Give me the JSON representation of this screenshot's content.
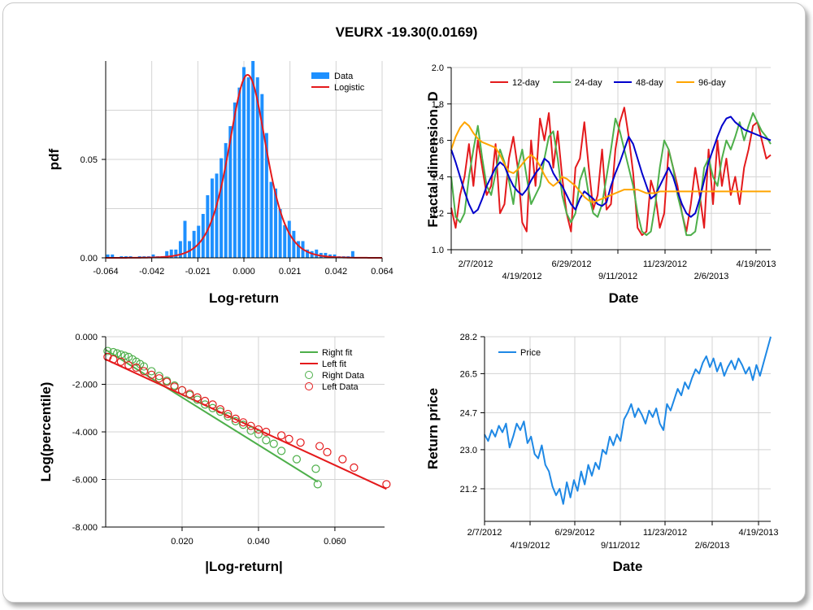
{
  "title": "VEURX -19.30(0.0169)",
  "colors": {
    "data_blue": "#1e90ff",
    "red": "#e41a1c",
    "green": "#4daf4a",
    "blue": "#0000cc",
    "orange": "#ffa500",
    "price": "#1e88e5",
    "grid": "#d3d3d3"
  },
  "chart_data": [
    {
      "type": "bar",
      "name": "histogram",
      "xlabel": "Log-return",
      "ylabel": "pdf",
      "xlim": [
        -0.064,
        0.064
      ],
      "xticks": [
        "-0.064",
        "-0.042",
        "-0.021",
        "0.000",
        "0.021",
        "0.042",
        "0.064"
      ],
      "ylim": [
        0,
        0.1
      ],
      "yticks": [
        "0.00",
        "0.05"
      ],
      "legend": [
        "Data",
        "Logistic"
      ],
      "bin_width": 0.0021,
      "bin_centers": [
        -0.063,
        -0.0609,
        -0.0588,
        -0.0567,
        -0.0546,
        -0.0525,
        -0.0504,
        -0.0483,
        -0.0462,
        -0.0441,
        -0.042,
        -0.0399,
        -0.0378,
        -0.0357,
        -0.0336,
        -0.0315,
        -0.0294,
        -0.0273,
        -0.0252,
        -0.0231,
        -0.021,
        -0.0189,
        -0.0168,
        -0.0147,
        -0.0126,
        -0.0105,
        -0.0084,
        -0.0063,
        -0.0042,
        -0.0021,
        0.0,
        0.0021,
        0.0042,
        0.0063,
        0.0084,
        0.0105,
        0.0126,
        0.0147,
        0.0168,
        0.0189,
        0.021,
        0.0231,
        0.0252,
        0.0273,
        0.0294,
        0.0315,
        0.0336,
        0.0357,
        0.0378,
        0.0399,
        0.042,
        0.0441,
        0.0462,
        0.0483,
        0.0504
      ],
      "values": [
        0.0017,
        0.0017,
        0,
        0.0008,
        0.0008,
        0.0008,
        0,
        0.0008,
        0.0008,
        0.0008,
        0.0017,
        0.0008,
        0.0008,
        0.0034,
        0.0042,
        0.0042,
        0.0085,
        0.0188,
        0.0085,
        0.0137,
        0.0163,
        0.0223,
        0.0318,
        0.0403,
        0.0428,
        0.0506,
        0.0583,
        0.0669,
        0.0789,
        0.0865,
        0.0969,
        0.0917,
        0.1,
        0.0917,
        0.0832,
        0.0634,
        0.0386,
        0.0352,
        0.0248,
        0.0166,
        0.0188,
        0.0137,
        0.0085,
        0.0085,
        0.0042,
        0.0034,
        0.0042,
        0.0025,
        0.0025,
        0.0017,
        0.0017,
        0.0008,
        0.0008,
        0.0008,
        0.0034
      ],
      "logistic": {
        "mu": 0.0017,
        "s": 0.0058
      }
    },
    {
      "type": "line",
      "name": "fractal",
      "xlabel": "Date",
      "ylabel": "Fractal dimension, D",
      "ylim": [
        1.0,
        2.0
      ],
      "yticks": [
        "1.0",
        "1.2",
        "1.4",
        "1.6",
        "1.8",
        "2.0"
      ],
      "xticks_top": [
        "2/7/2012",
        "6/29/2012",
        "11/23/2012",
        "4/19/2013"
      ],
      "xticks_bottom": [
        "4/19/2012",
        "9/11/2012",
        "2/6/2013"
      ],
      "x": [
        0,
        1,
        2,
        3,
        4,
        5,
        6,
        7,
        8,
        9,
        10,
        11,
        12,
        13,
        14,
        15,
        16,
        17,
        18,
        19,
        20,
        21,
        22,
        23,
        24,
        25,
        26,
        27,
        28,
        29,
        30,
        31,
        32,
        33,
        34,
        35,
        36,
        37,
        38,
        39,
        40,
        41,
        42,
        43,
        44,
        45,
        46,
        47,
        48,
        49,
        50,
        51,
        52,
        53,
        54,
        55,
        56,
        57,
        58,
        59,
        60,
        61,
        62,
        63,
        64,
        65,
        66,
        67,
        68,
        69,
        70,
        71,
        72
      ],
      "series": [
        {
          "name": "12-day",
          "values": [
            1.23,
            1.12,
            1.3,
            1.4,
            1.58,
            1.35,
            1.6,
            1.45,
            1.3,
            1.35,
            1.58,
            1.2,
            1.25,
            1.5,
            1.62,
            1.45,
            1.15,
            1.1,
            1.6,
            1.35,
            1.72,
            1.6,
            1.75,
            1.45,
            1.65,
            1.4,
            1.2,
            1.1,
            1.45,
            1.5,
            1.7,
            1.45,
            1.22,
            1.3,
            1.55,
            1.22,
            1.25,
            1.55,
            1.7,
            1.78,
            1.62,
            1.42,
            1.12,
            1.08,
            1.1,
            1.38,
            1.3,
            1.12,
            1.2,
            1.55,
            1.45,
            1.35,
            1.2,
            1.1,
            1.25,
            1.45,
            1.3,
            1.12,
            1.55,
            1.25,
            1.6,
            1.35,
            1.5,
            1.3,
            1.4,
            1.25,
            1.45,
            1.55,
            1.68,
            1.7,
            1.6,
            1.5,
            1.52
          ]
        },
        {
          "name": "24-day",
          "values": [
            1.4,
            1.18,
            1.15,
            1.2,
            1.4,
            1.55,
            1.68,
            1.5,
            1.35,
            1.3,
            1.42,
            1.55,
            1.48,
            1.38,
            1.25,
            1.45,
            1.55,
            1.4,
            1.25,
            1.3,
            1.35,
            1.5,
            1.62,
            1.65,
            1.5,
            1.3,
            1.2,
            1.15,
            1.2,
            1.38,
            1.45,
            1.3,
            1.2,
            1.18,
            1.25,
            1.4,
            1.55,
            1.72,
            1.65,
            1.55,
            1.45,
            1.35,
            1.2,
            1.1,
            1.08,
            1.1,
            1.25,
            1.45,
            1.6,
            1.55,
            1.45,
            1.3,
            1.2,
            1.08,
            1.08,
            1.1,
            1.25,
            1.45,
            1.5,
            1.4,
            1.35,
            1.5,
            1.6,
            1.55,
            1.62,
            1.7,
            1.6,
            1.68,
            1.75,
            1.7,
            1.65,
            1.62,
            1.58
          ]
        },
        {
          "name": "48-day",
          "values": [
            1.55,
            1.48,
            1.4,
            1.32,
            1.25,
            1.2,
            1.22,
            1.28,
            1.35,
            1.4,
            1.45,
            1.48,
            1.46,
            1.4,
            1.35,
            1.32,
            1.3,
            1.33,
            1.38,
            1.42,
            1.45,
            1.5,
            1.48,
            1.42,
            1.38,
            1.35,
            1.3,
            1.25,
            1.22,
            1.28,
            1.32,
            1.3,
            1.28,
            1.25,
            1.24,
            1.26,
            1.35,
            1.42,
            1.48,
            1.55,
            1.62,
            1.58,
            1.5,
            1.42,
            1.35,
            1.28,
            1.3,
            1.35,
            1.4,
            1.45,
            1.4,
            1.32,
            1.25,
            1.2,
            1.18,
            1.2,
            1.28,
            1.38,
            1.48,
            1.55,
            1.62,
            1.68,
            1.72,
            1.73,
            1.7,
            1.68,
            1.66,
            1.65,
            1.64,
            1.63,
            1.62,
            1.61,
            1.6
          ]
        },
        {
          "name": "96-day",
          "values": [
            1.55,
            1.62,
            1.67,
            1.7,
            1.68,
            1.64,
            1.61,
            1.59,
            1.58,
            1.57,
            1.56,
            1.52,
            1.47,
            1.43,
            1.42,
            1.44,
            1.47,
            1.5,
            1.52,
            1.5,
            1.46,
            1.41,
            1.37,
            1.35,
            1.37,
            1.4,
            1.39,
            1.37,
            1.35,
            1.32,
            1.29,
            1.27,
            1.26,
            1.27,
            1.28,
            1.29,
            1.3,
            1.31,
            1.32,
            1.33,
            1.33,
            1.33,
            1.33,
            1.32,
            1.31,
            1.31,
            1.31,
            1.32,
            1.32,
            1.32,
            1.32,
            1.32,
            1.32,
            1.32,
            1.32,
            1.32,
            1.32,
            1.32,
            1.32,
            1.32,
            1.32,
            1.32,
            1.32,
            1.32,
            1.32,
            1.32,
            1.32,
            1.32,
            1.32,
            1.32,
            1.32,
            1.32,
            1.32
          ]
        }
      ]
    },
    {
      "type": "scatter",
      "name": "tails",
      "xlabel": "|Log-return|",
      "ylabel": "Log(percentile)",
      "xlim": [
        0,
        0.073
      ],
      "ylim": [
        -8,
        0
      ],
      "xticks": [
        "0.020",
        "0.040",
        "0.060"
      ],
      "yticks": [
        "0.000",
        "-2.000",
        "-4.000",
        "-6.000",
        "-8.000"
      ],
      "legend": [
        "Right fit",
        "Left fit",
        "Right Data",
        "Left Data"
      ],
      "right_fit": {
        "x": [
          0,
          0.0555
        ],
        "y": [
          -0.55,
          -6.1
        ]
      },
      "left_fit": {
        "x": [
          0,
          0.0735
        ],
        "y": [
          -0.95,
          -6.4
        ]
      },
      "right_data": {
        "x": [
          0.0005,
          0.002,
          0.003,
          0.004,
          0.005,
          0.006,
          0.007,
          0.008,
          0.009,
          0.01,
          0.012,
          0.014,
          0.016,
          0.018,
          0.02,
          0.022,
          0.024,
          0.026,
          0.028,
          0.03,
          0.032,
          0.034,
          0.036,
          0.038,
          0.04,
          0.042,
          0.044,
          0.046,
          0.05,
          0.055,
          0.0555
        ],
        "y": [
          -0.6,
          -0.65,
          -0.7,
          -0.75,
          -0.8,
          -0.85,
          -0.95,
          -1.05,
          -1.15,
          -1.25,
          -1.45,
          -1.65,
          -1.85,
          -2.05,
          -2.25,
          -2.45,
          -2.65,
          -2.85,
          -3.0,
          -3.15,
          -3.35,
          -3.55,
          -3.7,
          -3.95,
          -4.1,
          -4.35,
          -4.5,
          -4.8,
          -5.15,
          -5.55,
          -6.2
        ]
      },
      "left_data": {
        "x": [
          0.0005,
          0.002,
          0.004,
          0.006,
          0.008,
          0.01,
          0.012,
          0.014,
          0.016,
          0.018,
          0.02,
          0.022,
          0.024,
          0.026,
          0.028,
          0.03,
          0.032,
          0.034,
          0.036,
          0.038,
          0.04,
          0.042,
          0.046,
          0.048,
          0.051,
          0.056,
          0.058,
          0.062,
          0.065,
          0.0735
        ],
        "y": [
          -0.85,
          -0.95,
          -1.05,
          -1.2,
          -1.3,
          -1.45,
          -1.6,
          -1.75,
          -1.9,
          -2.1,
          -2.25,
          -2.4,
          -2.55,
          -2.7,
          -2.85,
          -3.05,
          -3.25,
          -3.45,
          -3.6,
          -3.75,
          -3.9,
          -4.0,
          -4.15,
          -4.3,
          -4.45,
          -4.6,
          -4.85,
          -5.15,
          -5.5,
          -6.2
        ]
      }
    },
    {
      "type": "line",
      "name": "price",
      "xlabel": "Date",
      "ylabel": "Return price",
      "ylim": [
        19.8,
        28.2
      ],
      "yticks": [
        "28.2",
        "26.5",
        "24.7",
        "23.0",
        "21.2"
      ],
      "ytick_values": [
        28.2,
        26.5,
        24.7,
        23.0,
        21.2
      ],
      "xticks_top": [
        "2/7/2012",
        "6/29/2012",
        "11/23/2012",
        "4/19/2013"
      ],
      "xticks_bottom": [
        "4/19/2012",
        "9/11/2012",
        "2/6/2013"
      ],
      "legend": [
        "Price"
      ],
      "x": [
        0,
        1,
        2,
        3,
        4,
        5,
        6,
        7,
        8,
        9,
        10,
        11,
        12,
        13,
        14,
        15,
        16,
        17,
        18,
        19,
        20,
        21,
        22,
        23,
        24,
        25,
        26,
        27,
        28,
        29,
        30,
        31,
        32,
        33,
        34,
        35,
        36,
        37,
        38,
        39,
        40,
        41,
        42,
        43,
        44,
        45,
        46,
        47,
        48,
        49,
        50,
        51,
        52,
        53,
        54,
        55,
        56,
        57,
        58,
        59,
        60,
        61,
        62,
        63,
        64,
        65,
        66,
        67,
        68,
        69,
        70,
        71,
        72,
        73,
        74,
        75,
        76,
        77,
        78,
        79,
        80
      ],
      "values": [
        23.7,
        23.4,
        23.9,
        23.6,
        24.1,
        23.8,
        24.2,
        23.1,
        23.6,
        24.2,
        23.9,
        24.3,
        23.3,
        23.6,
        22.8,
        22.6,
        23.2,
        22.3,
        22.0,
        21.3,
        20.9,
        21.2,
        20.5,
        21.5,
        20.8,
        21.6,
        21.1,
        22.0,
        21.4,
        22.3,
        21.8,
        22.4,
        22.1,
        23.0,
        22.8,
        23.6,
        23.2,
        23.7,
        23.4,
        24.4,
        24.7,
        25.1,
        24.5,
        24.9,
        24.6,
        24.2,
        24.8,
        24.5,
        24.9,
        24.2,
        23.9,
        25.1,
        24.8,
        25.3,
        25.8,
        25.5,
        26.1,
        25.8,
        26.3,
        26.7,
        26.5,
        27.0,
        27.3,
        26.8,
        27.2,
        26.6,
        27.0,
        26.4,
        26.8,
        27.1,
        26.7,
        27.2,
        26.9,
        26.5,
        26.8,
        26.2,
        26.9,
        26.4,
        27.0,
        27.6,
        28.2
      ]
    }
  ]
}
